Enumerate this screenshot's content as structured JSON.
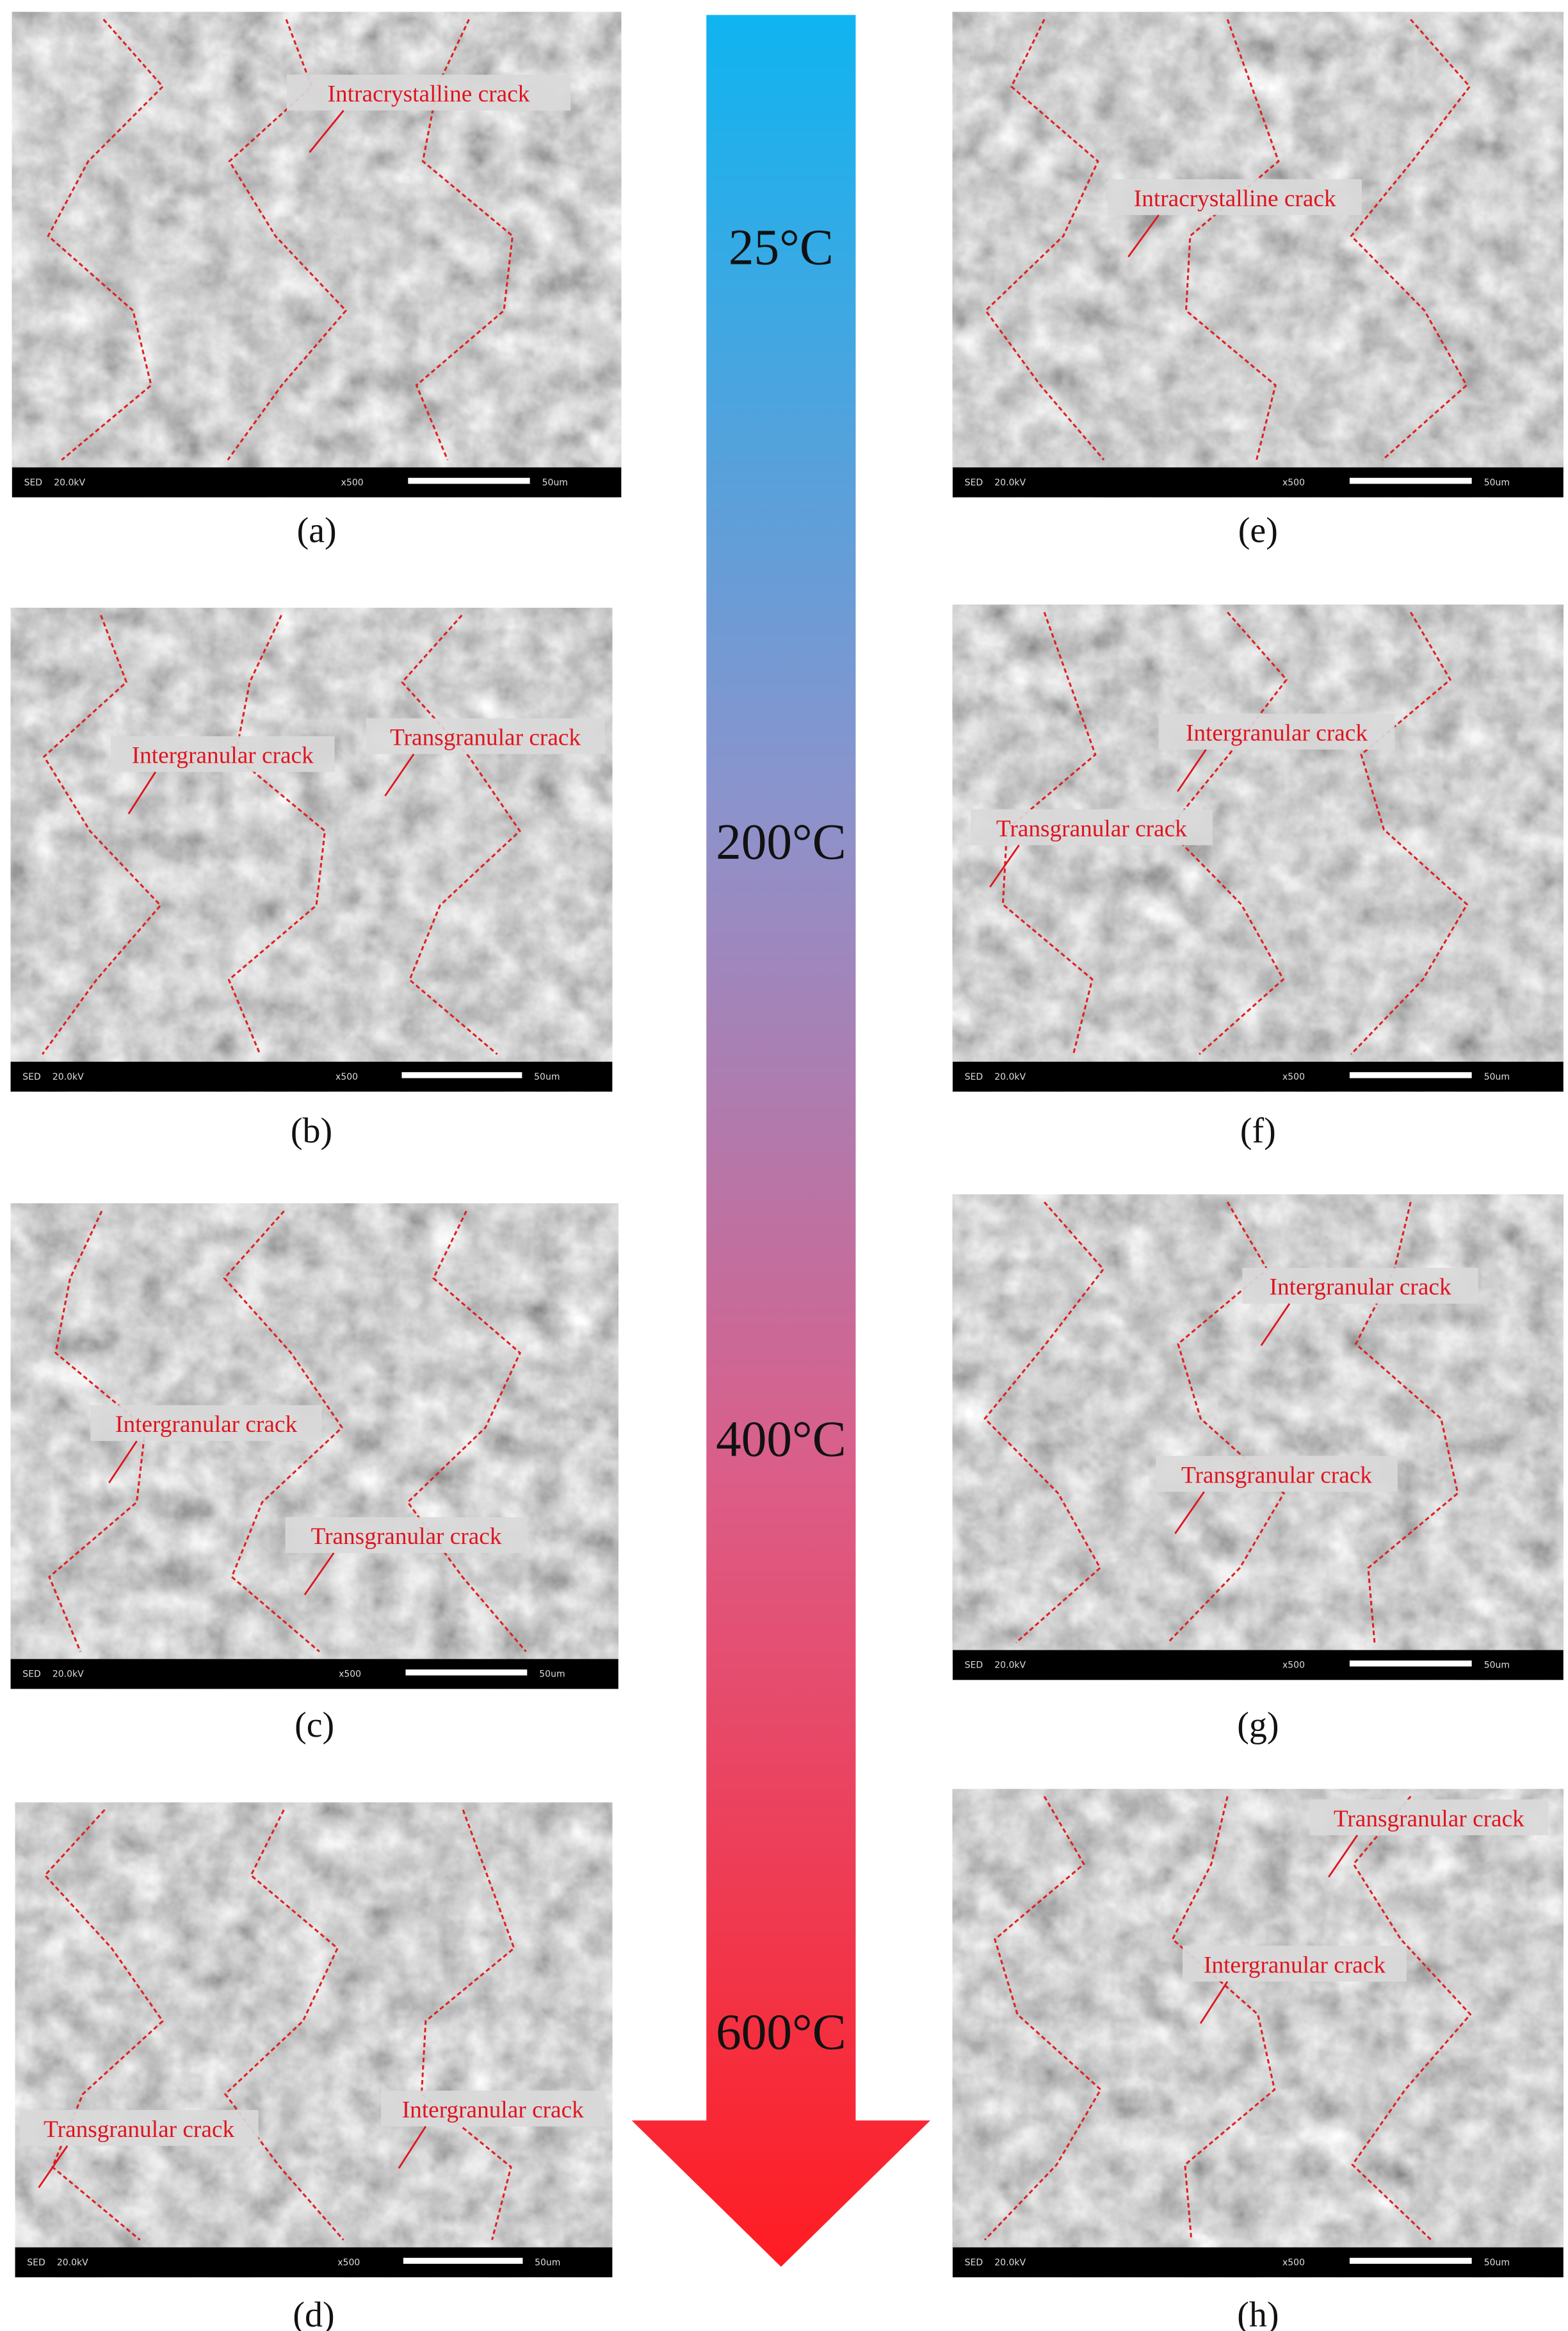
{
  "sem_footer": {
    "detector": "SED",
    "voltage": "20.0kV",
    "magnification": "x500",
    "scale": "50um"
  },
  "temperatures": [
    "25°C",
    "200°C",
    "400°C",
    "600°C"
  ],
  "panels": [
    {
      "label": "(a)",
      "annotations": [
        "Intracrystalline crack"
      ]
    },
    {
      "label": "(b)",
      "annotations": [
        "Intergranular crack",
        "Transgranular crack"
      ]
    },
    {
      "label": "(c)",
      "annotations": [
        "Intergranular crack",
        "Transgranular crack"
      ]
    },
    {
      "label": "(d)",
      "annotations": [
        "Transgranular crack",
        "Intergranular crack"
      ]
    },
    {
      "label": "(e)",
      "annotations": [
        "Intracrystalline crack"
      ]
    },
    {
      "label": "(f)",
      "annotations": [
        "Intergranular crack",
        "Transgranular crack"
      ]
    },
    {
      "label": "(g)",
      "annotations": [
        "Intergranular crack",
        "Transgranular crack"
      ]
    },
    {
      "label": "(h)",
      "annotations": [
        "Transgranular crack",
        "Intergranular crack"
      ]
    }
  ]
}
